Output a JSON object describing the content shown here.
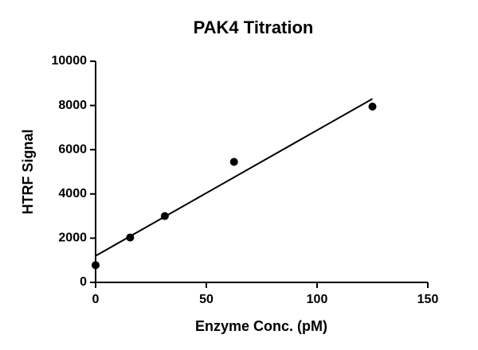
{
  "chart_data": {
    "type": "scatter",
    "title": "PAK4 Titration",
    "x_label": "Enzyme Conc. (pM)",
    "y_label": "HTRF Signal",
    "series": [
      {
        "color": "#000000",
        "style": "points",
        "x": [
          0,
          15.6,
          31.25,
          62.5,
          125
        ],
        "values": [
          780,
          2030,
          3000,
          5450,
          7950
        ]
      },
      {
        "color": "#000000",
        "style": "line",
        "x": [
          0,
          125
        ],
        "values": [
          1200,
          8300
        ]
      }
    ],
    "xlim": [
      0,
      150
    ],
    "xticks": [
      0,
      50,
      100,
      150
    ],
    "ylim": [
      0,
      10000
    ],
    "yticks": [
      0,
      2000,
      4000,
      6000,
      8000,
      10000
    ],
    "grid": false
  }
}
